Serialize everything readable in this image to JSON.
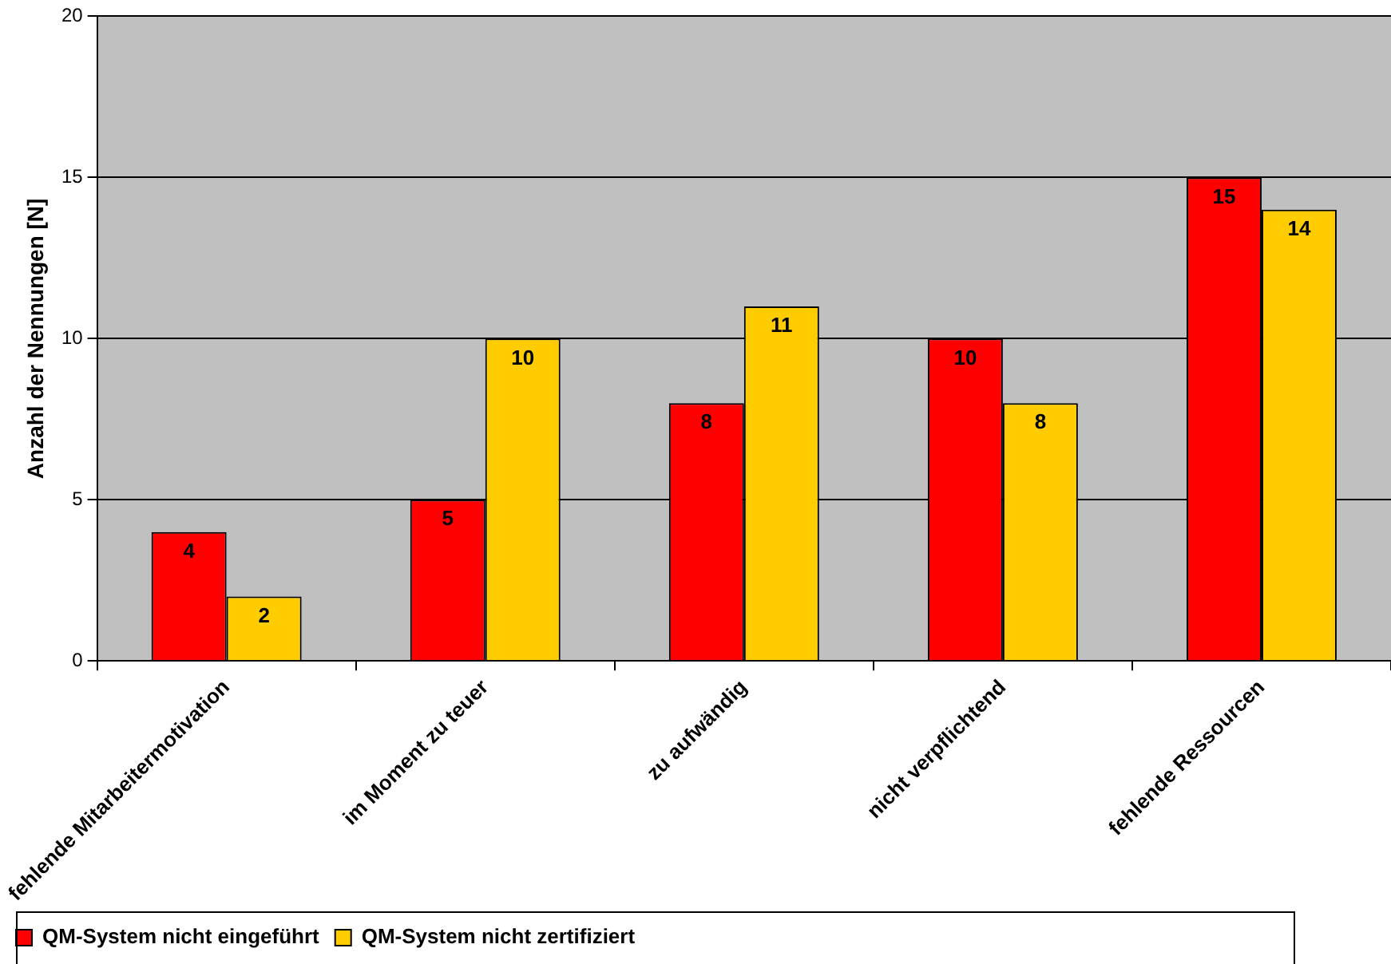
{
  "chart_data": {
    "type": "bar",
    "ylabel": "Anzahl der Nennungen [N]",
    "categories": [
      "fehlende Mitarbeitermotivation",
      "im Moment zu teuer",
      "zu aufwändig",
      "nicht verpflichtend",
      "fehlende Ressourcen"
    ],
    "series": [
      {
        "name": "QM-System nicht eingeführt",
        "color": "#ff0000",
        "values": [
          4,
          5,
          8,
          10,
          15
        ]
      },
      {
        "name": "QM-System nicht zertifiziert",
        "color": "#ffcc00",
        "values": [
          2,
          10,
          11,
          8,
          14
        ]
      }
    ],
    "ylim": [
      0,
      20
    ],
    "yticks": [
      0,
      5,
      10,
      15,
      20
    ],
    "grid": "y",
    "legend": "bottom",
    "data_labels": true
  }
}
